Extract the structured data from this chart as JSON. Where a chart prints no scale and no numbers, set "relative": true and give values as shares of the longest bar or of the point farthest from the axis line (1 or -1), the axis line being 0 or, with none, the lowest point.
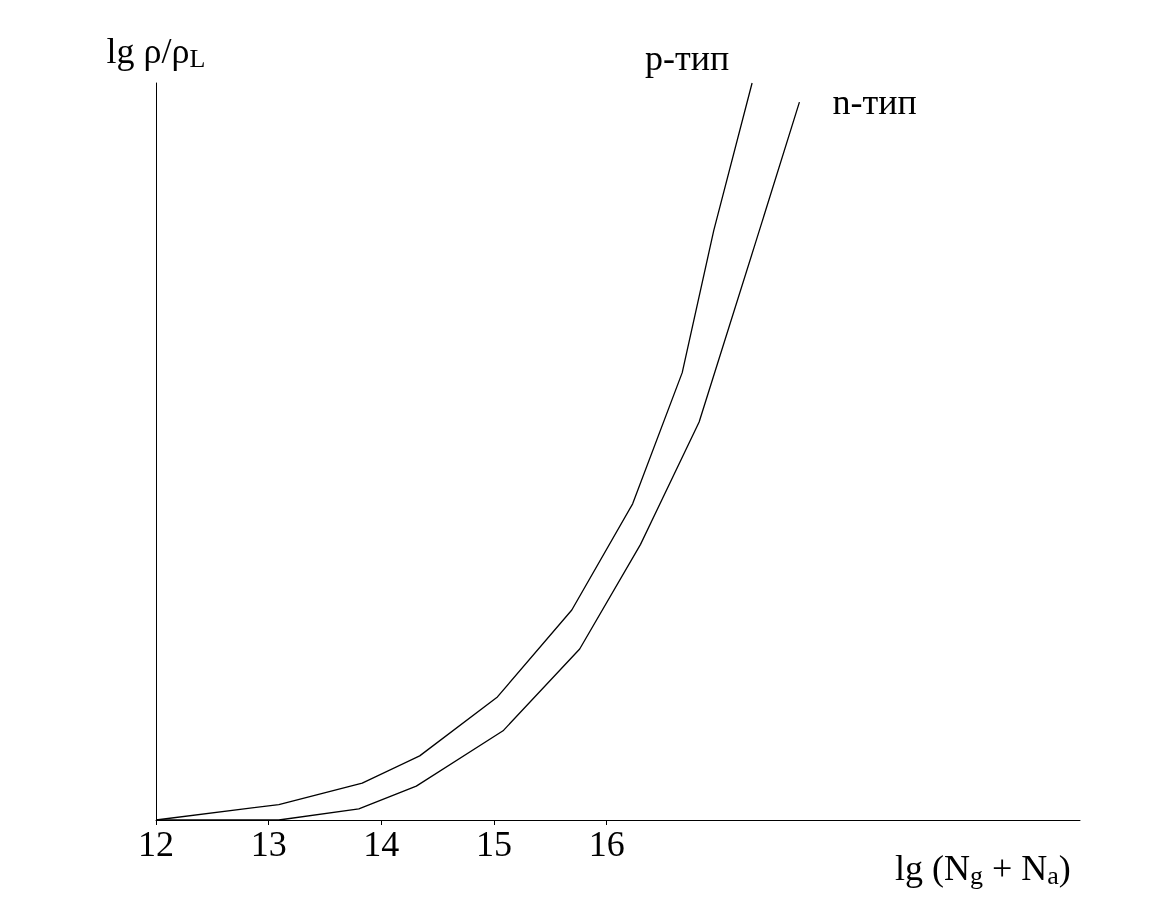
{
  "chart_data": {
    "type": "line",
    "relative": true,
    "xlabel": "lg (N$_{g}$ + N$_{a}$)",
    "ylabel": "lg ρ/ρ$_{L}$",
    "xlim": [
      12,
      20.2
    ],
    "xticks": [
      12,
      13,
      14,
      15,
      16
    ],
    "tick_labels": "x",
    "grid": false,
    "legend": false,
    "marker": "none",
    "line_style": "solid",
    "series": [
      {
        "name": "p-тип",
        "color": "#000000",
        "x": [
          12,
          13.09,
          13.83,
          14.34,
          15.03,
          15.69,
          16.23,
          16.67,
          16.95,
          17.29
        ],
        "values": [
          0,
          0.021,
          0.05,
          0.087,
          0.167,
          0.285,
          0.429,
          0.607,
          0.8,
          1
        ]
      },
      {
        "name": "n-тип",
        "color": "#000000",
        "x": [
          12,
          13.09,
          13.8,
          14.31,
          15.08,
          15.76,
          16.3,
          16.82,
          17.32,
          17.71
        ],
        "values": [
          0,
          0,
          0.015,
          0.046,
          0.121,
          0.232,
          0.374,
          0.54,
          0.783,
          0.974
        ]
      }
    ]
  }
}
